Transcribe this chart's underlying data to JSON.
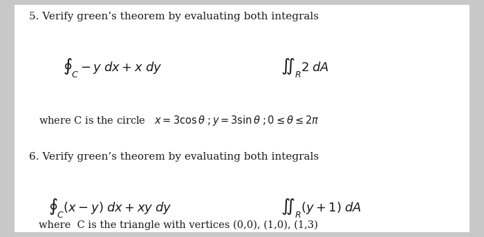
{
  "bg_color": "#c8c8c8",
  "panel_color": "#ffffff",
  "text_color": "#1a1a1a",
  "title5": "5. Verify green’s theorem by evaluating both integrals",
  "title6": "6. Verify green’s theorem by evaluating both integrals",
  "line1_left": "$\\oint_C -y\\;dx + x\\;dy$",
  "line1_right": "$\\iint_R 2\\;dA$",
  "where1": "where C is the circle   $x = 3\\cos\\theta\\;; y = 3\\sin\\theta\\;; 0 \\leq \\theta \\leq 2\\pi$",
  "line2_left": "$\\oint_C (x-y)\\;dx + xy\\;dy$",
  "line2_right": "$\\iint_R (y+1)\\;dA$",
  "where2": "where  C is the triangle with vertices (0,0), (1,0), (1,3)"
}
